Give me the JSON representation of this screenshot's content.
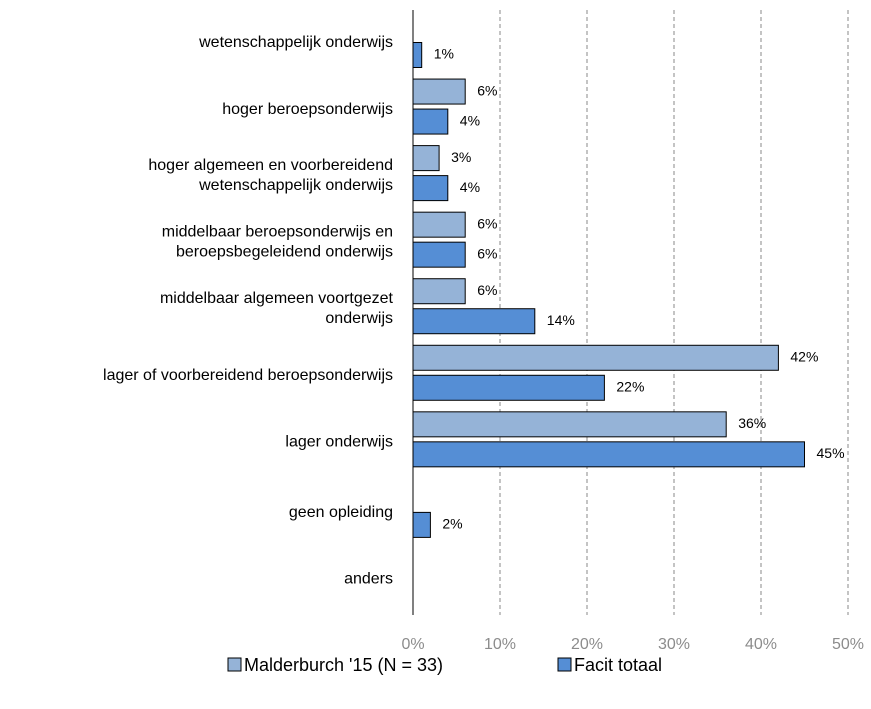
{
  "chart_data": {
    "type": "bar",
    "orientation": "horizontal",
    "categories": [
      "wetenschappelijk onderwijs",
      "hoger beroepsonderwijs",
      "hoger algemeen en voorbereidend\nwetenschappelijk onderwijs",
      "middelbaar beroepsonderwijs en\nberoepsbegeleidend onderwijs",
      "middelbaar algemeen voortgezet\nonderwijs",
      "lager of voorbereidend beroepsonderwijs",
      "lager onderwijs",
      "geen opleiding",
      "anders"
    ],
    "series": [
      {
        "name": "Malderburch '15 (N = 33)",
        "color": "#95b3d7",
        "values": [
          null,
          6,
          3,
          6,
          6,
          42,
          36,
          null,
          null
        ],
        "value_labels": [
          null,
          "6%",
          "3%",
          "6%",
          "6%",
          "42%",
          "36%",
          null,
          null
        ]
      },
      {
        "name": "Facit totaal",
        "color": "#558ed5",
        "values": [
          1,
          4,
          4,
          6,
          14,
          22,
          45,
          2,
          null
        ],
        "value_labels": [
          "1%",
          "4%",
          "4%",
          "6%",
          "14%",
          "22%",
          "45%",
          "2%",
          null
        ]
      }
    ],
    "xlim": [
      0,
      50
    ],
    "xticks": [
      {
        "value": 0,
        "label": "0%"
      },
      {
        "value": 10,
        "label": "10%"
      },
      {
        "value": 20,
        "label": "20%"
      },
      {
        "value": 30,
        "label": "30%"
      },
      {
        "value": 40,
        "label": "40%"
      },
      {
        "value": 50,
        "label": "50%"
      }
    ],
    "grid": true,
    "legend": "bottom"
  }
}
